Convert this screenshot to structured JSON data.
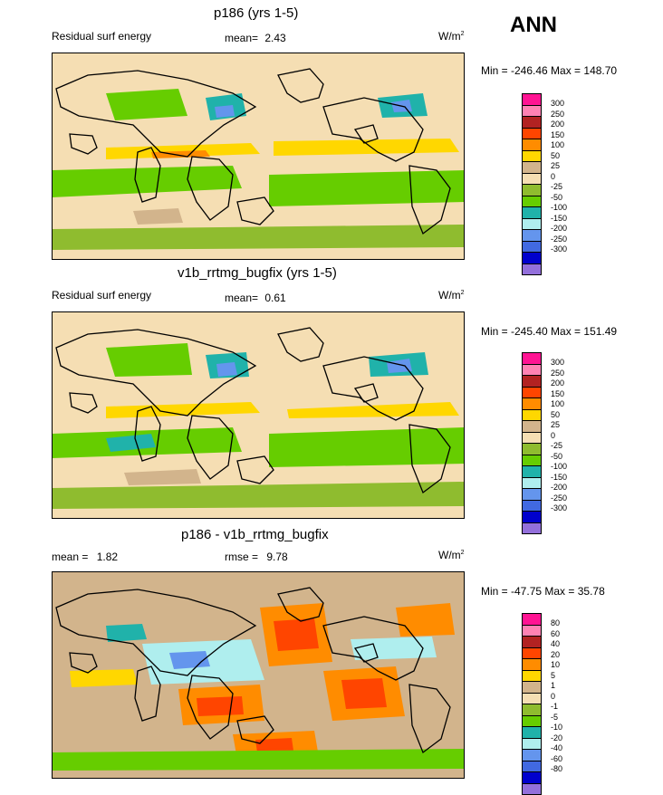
{
  "season": "ANN",
  "panels": [
    {
      "title": "p186 (yrs 1-5)",
      "left_label": "Residual surf energy",
      "center_label": "mean=",
      "center_value": "2.43",
      "units": "W/m",
      "units_sup": "2",
      "minmax": "Min = -246.46 Max = 148.70"
    },
    {
      "title": "v1b_rrtmg_bugfix (yrs 1-5)",
      "left_label": "Residual surf energy",
      "center_label": "mean=",
      "center_value": "0.61",
      "units": "W/m",
      "units_sup": "2",
      "minmax": "Min = -245.40 Max = 151.49"
    },
    {
      "title": "p186 - v1b_rrtmg_bugfix",
      "left_label": "mean =",
      "left_value": "1.82",
      "center_label": "rmse =",
      "center_value": "9.78",
      "units": "W/m",
      "units_sup": "2",
      "minmax": "Min = -47.75 Max = 35.78"
    }
  ],
  "chart_data": [
    {
      "type": "heatmap",
      "title": "p186 (yrs 1-5)",
      "variable": "Residual surf energy",
      "mean": 2.43,
      "min": -246.46,
      "max": 148.7,
      "units": "W/m2",
      "levels": [
        "300",
        "250",
        "200",
        "150",
        "100",
        "50",
        "25",
        "0",
        "-25",
        "-50",
        "-100",
        "-150",
        "-200",
        "-250",
        "-300"
      ],
      "colors": [
        "#ff1493",
        "#ff82b4",
        "#b22222",
        "#ff4500",
        "#ff8c00",
        "#ffd700",
        "#d2b48c",
        "#f5deb3",
        "#8fbc2f",
        "#66cd00",
        "#20b2aa",
        "#afeeee",
        "#6495ed",
        "#4169e1",
        "#0000cd",
        "#9370db"
      ]
    },
    {
      "type": "heatmap",
      "title": "v1b_rrtmg_bugfix (yrs 1-5)",
      "variable": "Residual surf energy",
      "mean": 0.61,
      "min": -245.4,
      "max": 151.49,
      "units": "W/m2",
      "levels": [
        "300",
        "250",
        "200",
        "150",
        "100",
        "50",
        "25",
        "0",
        "-25",
        "-50",
        "-100",
        "-150",
        "-200",
        "-250",
        "-300"
      ],
      "colors": [
        "#ff1493",
        "#ff82b4",
        "#b22222",
        "#ff4500",
        "#ff8c00",
        "#ffd700",
        "#d2b48c",
        "#f5deb3",
        "#8fbc2f",
        "#66cd00",
        "#20b2aa",
        "#afeeee",
        "#6495ed",
        "#4169e1",
        "#0000cd",
        "#9370db"
      ]
    },
    {
      "type": "heatmap",
      "title": "p186 - v1b_rrtmg_bugfix",
      "mean": 1.82,
      "rmse": 9.78,
      "min": -47.75,
      "max": 35.78,
      "units": "W/m2",
      "levels": [
        "80",
        "60",
        "40",
        "20",
        "10",
        "5",
        "1",
        "0",
        "-1",
        "-5",
        "-10",
        "-20",
        "-40",
        "-60",
        "-80"
      ],
      "colors": [
        "#ff1493",
        "#ff82b4",
        "#b22222",
        "#ff4500",
        "#ff8c00",
        "#ffd700",
        "#d2b48c",
        "#f5deb3",
        "#8fbc2f",
        "#66cd00",
        "#20b2aa",
        "#afeeee",
        "#6495ed",
        "#4169e1",
        "#0000cd",
        "#9370db"
      ]
    }
  ]
}
